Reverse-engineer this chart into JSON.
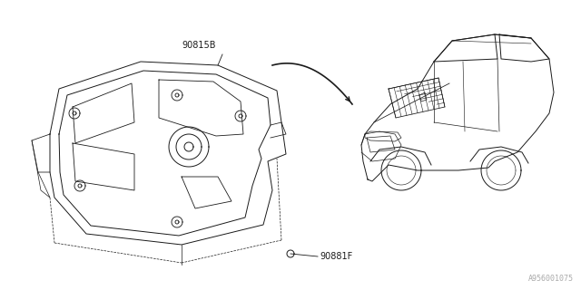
{
  "bg_color": "#ffffff",
  "line_color": "#1a1a1a",
  "part_label_1": "90815B",
  "part_label_2": "90881F",
  "diagram_id": "A956001075"
}
